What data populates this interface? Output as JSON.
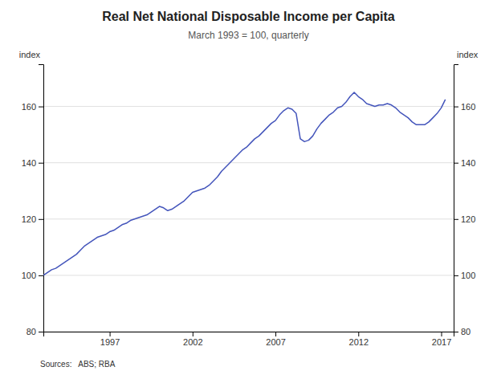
{
  "chart_data": {
    "type": "line",
    "title": "Real Net National Disposable Income per Capita",
    "subtitle": "March 1993 = 100, quarterly",
    "ylabel": "index",
    "y2label": "index",
    "source": "Sources:   ABS; RBA",
    "color": "#4455bb",
    "grid": true,
    "xlim": [
      1993.0,
      2017.75
    ],
    "xticks": [
      1997,
      2002,
      2007,
      2012,
      2017
    ],
    "ylim": [
      80,
      175
    ],
    "yticks": [
      80,
      100,
      120,
      140,
      160
    ],
    "y2lim": [
      80,
      175
    ],
    "y2ticks": [
      80,
      100,
      120,
      140,
      160
    ],
    "x": [
      1993.0,
      1993.25,
      1993.5,
      1993.75,
      1994.0,
      1994.25,
      1994.5,
      1994.75,
      1995.0,
      1995.25,
      1995.5,
      1995.75,
      1996.0,
      1996.25,
      1996.5,
      1996.75,
      1997.0,
      1997.25,
      1997.5,
      1997.75,
      1998.0,
      1998.25,
      1998.5,
      1998.75,
      1999.0,
      1999.25,
      1999.5,
      1999.75,
      2000.0,
      2000.25,
      2000.5,
      2000.75,
      2001.0,
      2001.25,
      2001.5,
      2001.75,
      2002.0,
      2002.25,
      2002.5,
      2002.75,
      2003.0,
      2003.25,
      2003.5,
      2003.75,
      2004.0,
      2004.25,
      2004.5,
      2004.75,
      2005.0,
      2005.25,
      2005.5,
      2005.75,
      2006.0,
      2006.25,
      2006.5,
      2006.75,
      2007.0,
      2007.25,
      2007.5,
      2007.75,
      2008.0,
      2008.25,
      2008.5,
      2008.75,
      2009.0,
      2009.25,
      2009.5,
      2009.75,
      2010.0,
      2010.25,
      2010.5,
      2010.75,
      2011.0,
      2011.25,
      2011.5,
      2011.75,
      2012.0,
      2012.25,
      2012.5,
      2012.75,
      2013.0,
      2013.25,
      2013.5,
      2013.75,
      2014.0,
      2014.25,
      2014.5,
      2014.75,
      2015.0,
      2015.25,
      2015.5,
      2015.75,
      2016.0,
      2016.25,
      2016.5,
      2016.75,
      2017.0,
      2017.25
    ],
    "values": [
      100.0,
      101.0,
      102.0,
      102.5,
      103.5,
      104.5,
      105.5,
      106.5,
      107.5,
      109.0,
      110.5,
      111.5,
      112.5,
      113.5,
      114.0,
      114.5,
      115.5,
      116.0,
      117.0,
      118.0,
      118.5,
      119.5,
      120.0,
      120.5,
      121.0,
      121.5,
      122.5,
      123.5,
      124.5,
      124.0,
      123.0,
      123.5,
      124.5,
      125.5,
      126.5,
      128.0,
      129.5,
      130.0,
      130.5,
      131.0,
      132.0,
      133.5,
      135.0,
      137.0,
      138.5,
      140.0,
      141.5,
      143.0,
      144.5,
      145.5,
      147.0,
      148.5,
      149.5,
      151.0,
      152.5,
      154.0,
      155.0,
      157.0,
      158.5,
      159.5,
      159.0,
      157.5,
      148.5,
      147.5,
      148.0,
      149.5,
      152.0,
      154.0,
      155.5,
      157.0,
      158.0,
      159.5,
      160.0,
      161.5,
      163.5,
      165.0,
      163.5,
      162.5,
      161.0,
      160.5,
      160.0,
      160.5,
      160.5,
      161.0,
      160.5,
      159.5,
      158.0,
      157.0,
      156.0,
      154.5,
      153.5,
      153.5,
      153.5,
      154.5,
      156.0,
      157.5,
      159.5,
      162.5
    ]
  }
}
